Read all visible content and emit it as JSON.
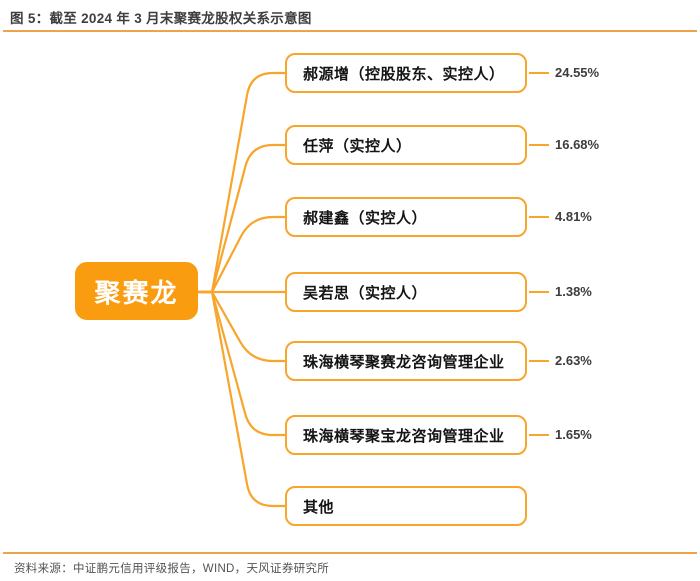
{
  "title": "图 5：截至 2024 年 3 月末聚赛龙股权关系示意图",
  "company": "聚赛龙",
  "shareholders": [
    {
      "label": "郝源增（控股股东、实控人）",
      "percent": "24.55%"
    },
    {
      "label": "任萍（实控人）",
      "percent": "16.68%"
    },
    {
      "label": "郝建鑫（实控人）",
      "percent": "4.81%"
    },
    {
      "label": "吴若思（实控人）",
      "percent": "1.38%"
    },
    {
      "label": "珠海横琴聚赛龙咨询管理企业",
      "percent": "2.63%"
    },
    {
      "label": "珠海横琴聚宝龙咨询管理企业",
      "percent": "1.65%"
    },
    {
      "label": "其他",
      "percent": ""
    }
  ],
  "source": "资料来源：中证鹏元信用评级报告，WIND，天风证券研究所",
  "colors": {
    "accent": "#f8a52b",
    "node_fill": "#f99c0f",
    "rule": "#f0a14c",
    "title_text": "#3e3e3e",
    "label_text": "#141414",
    "percent_text": "#3d3d3d",
    "source_text": "#535353"
  }
}
